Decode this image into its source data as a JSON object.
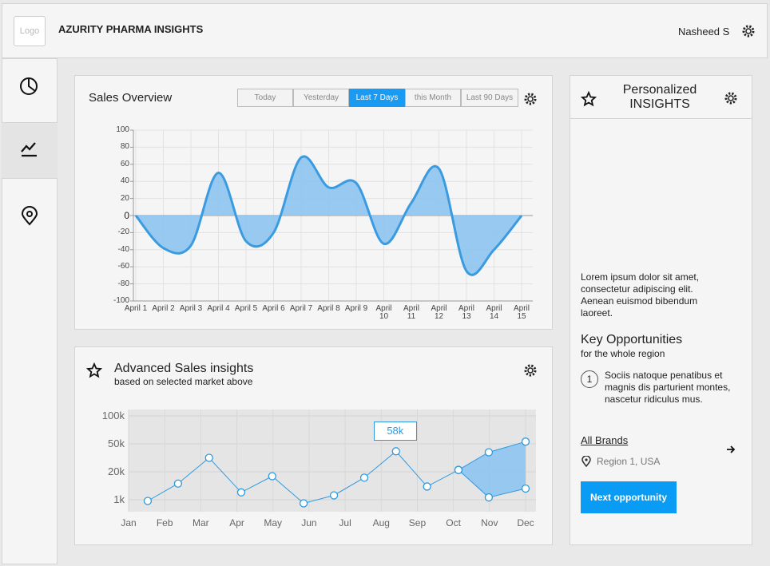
{
  "header": {
    "logo": "Logo",
    "title": "AZURITY PHARMA INSIGHTS",
    "user": "Nasheed S"
  },
  "sales_overview": {
    "title": "Sales Overview",
    "tabs": [
      "Today",
      "Yesterday",
      "Last 7 Days",
      "this Month",
      "Last 90 Days"
    ],
    "active_tab": 2,
    "chart_data": {
      "type": "area",
      "categories": [
        "April 1",
        "April 2",
        "April 3",
        "April 4",
        "April 5",
        "April 6",
        "April 7",
        "April 8",
        "April 9",
        "April 10",
        "April 11",
        "April 12",
        "April 13",
        "April 14",
        "April 15"
      ],
      "values": [
        0,
        -38,
        -35,
        50,
        -30,
        -20,
        68,
        33,
        38,
        -33,
        15,
        55,
        -65,
        -40,
        0
      ],
      "color": "#3a9be0",
      "fill": "#8ec4ef",
      "ylim": [
        -100,
        100
      ],
      "yticks": [
        -100,
        -80,
        -60,
        -40,
        -20,
        0,
        20,
        40,
        60,
        80,
        100
      ],
      "grid": true
    }
  },
  "advanced": {
    "title": "Advanced Sales insights",
    "subtitle": "based on selected market above",
    "chart_data": {
      "type": "line",
      "xlim": [
        0,
        11
      ],
      "xticks": [
        {
          "value": 0,
          "label": "Jan"
        },
        {
          "value": 1,
          "label": "Feb"
        },
        {
          "value": 2,
          "label": "Mar"
        },
        {
          "value": 3,
          "label": "Apr"
        },
        {
          "value": 4,
          "label": "May"
        },
        {
          "value": 5,
          "label": "Jun"
        },
        {
          "value": 6,
          "label": "Jul"
        },
        {
          "value": 7,
          "label": "Aug"
        },
        {
          "value": 8,
          "label": "Sep"
        },
        {
          "value": 9,
          "label": "Oct"
        },
        {
          "value": 10,
          "label": "Nov"
        },
        {
          "value": 11,
          "label": "Dec"
        }
      ],
      "ylim": [
        0,
        110000
      ],
      "yticks": [
        {
          "value": 1000,
          "label": "1k"
        },
        {
          "value": 20000,
          "label": "20k"
        },
        {
          "value": 50000,
          "label": "50k"
        },
        {
          "value": 100000,
          "label": "100k"
        }
      ],
      "x": [
        0.53,
        1.37,
        2.23,
        3.12,
        3.98,
        4.85,
        5.69,
        6.53,
        7.41,
        8.27,
        9.14
      ],
      "values": [
        900,
        12000,
        35000,
        6000,
        17000,
        700,
        4000,
        16000,
        42000,
        10000,
        22000
      ],
      "color": "#2d9ae0",
      "band": {
        "x": [
          9.14,
          9.98,
          11.0
        ],
        "upper": [
          22000,
          41000,
          54000
        ],
        "lower": [
          22000,
          2600,
          8600
        ],
        "color": "#8ec4ef"
      },
      "annotation": "58k",
      "grid": true
    }
  },
  "insights": {
    "title": "Personalized INSIGHTS",
    "body": "Lorem ipsum dolor sit amet, consectetur adipiscing elit. Aenean euismod bibendum laoreet.",
    "key_title": "Key Opportunities",
    "key_subtitle": "for the whole region",
    "items": [
      {
        "number": 1,
        "text": "Sociis natoque penatibus et magnis dis parturient montes, nascetur ridiculus mus."
      }
    ],
    "brands_link": "All Brands",
    "region": "Region 1, USA",
    "button": "Next opportunity"
  }
}
